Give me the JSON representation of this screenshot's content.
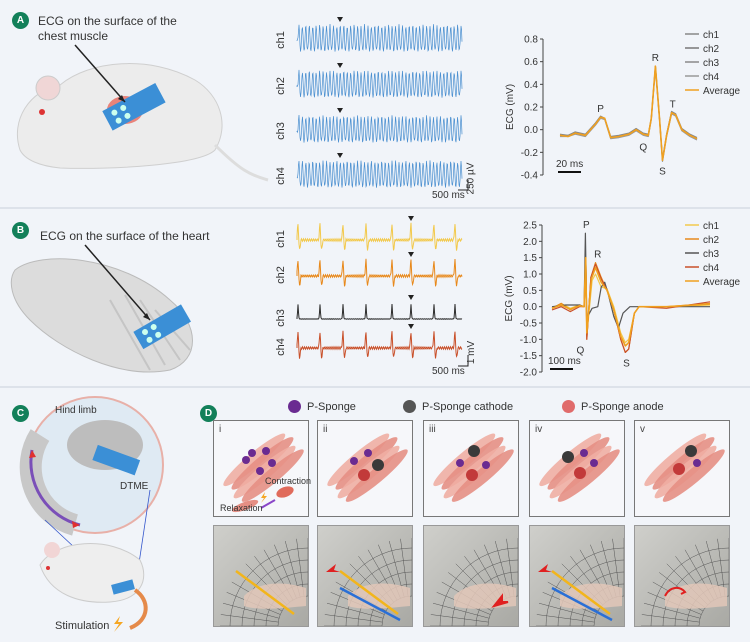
{
  "panels": {
    "a": {
      "badge": "A",
      "caption_line1": "ECG on the surface of the",
      "caption_line2": "chest muscle",
      "channels": [
        "ch1",
        "ch2",
        "ch3",
        "ch4"
      ],
      "time_scale": "500 ms",
      "amp_scale": "250 µV",
      "trace_color": "#4a8fd0"
    },
    "b": {
      "badge": "B",
      "caption": "ECG on the surface of the heart",
      "channels": [
        "ch1",
        "ch2",
        "ch3",
        "ch4"
      ],
      "time_scale": "500 ms",
      "amp_scale": "1 mV",
      "trace_colors": [
        "#f2c94c",
        "#e8891c",
        "#2b2b2b",
        "#c9502a"
      ]
    },
    "c": {
      "badge": "C",
      "hind_limb": "Hind limb",
      "dtme": "DTME",
      "stimulation": "Stimulation"
    },
    "d": {
      "badge": "D",
      "legend": [
        {
          "label": "P-Sponge",
          "color": "#6a2b91"
        },
        {
          "label": "P-Sponge cathode",
          "color": "#555555"
        },
        {
          "label": "P-Sponge anode",
          "color": "#e06b6b"
        }
      ],
      "subpanels": [
        "i",
        "ii",
        "iii",
        "iv",
        "v"
      ],
      "contraction": "Contraction",
      "relaxation": "Relaxation"
    }
  },
  "chart_data": [
    {
      "type": "line",
      "title": "",
      "ylabel": "ECG (mV)",
      "ylim": [
        -0.4,
        0.8
      ],
      "yticks": [
        "0.8",
        "0.6",
        "0.4",
        "0.2",
        "0.0",
        "-0.2",
        "-0.4"
      ],
      "xrange_ms": [
        0,
        135
      ],
      "scalebar": "20 ms",
      "legend_position": "top-right",
      "annotations": [
        {
          "label": "P",
          "t": 40,
          "v": 0.11
        },
        {
          "label": "R",
          "t": 94,
          "v": 0.56
        },
        {
          "label": "Q",
          "t": 88,
          "v": -0.06
        },
        {
          "label": "S",
          "t": 101,
          "v": -0.27
        },
        {
          "label": "T",
          "t": 111,
          "v": 0.15
        }
      ],
      "series": [
        {
          "name": "ch1",
          "color": "#888888",
          "points": [
            [
              0,
              -0.04
            ],
            [
              8,
              -0.05
            ],
            [
              15,
              -0.02
            ],
            [
              25,
              -0.04
            ],
            [
              35,
              0.06
            ],
            [
              40,
              0.12
            ],
            [
              44,
              0.1
            ],
            [
              50,
              -0.06
            ],
            [
              58,
              -0.05
            ],
            [
              68,
              -0.03
            ],
            [
              75,
              0.01
            ],
            [
              82,
              -0.03
            ],
            [
              87,
              -0.04
            ],
            [
              90,
              0.1
            ],
            [
              94,
              0.55
            ],
            [
              98,
              0.1
            ],
            [
              101,
              -0.26
            ],
            [
              105,
              -0.04
            ],
            [
              110,
              0.16
            ],
            [
              114,
              0.14
            ],
            [
              120,
              0.01
            ],
            [
              128,
              -0.04
            ],
            [
              135,
              -0.07
            ]
          ]
        },
        {
          "name": "ch2",
          "color": "#777777",
          "points": [
            [
              0,
              -0.05
            ],
            [
              8,
              -0.06
            ],
            [
              15,
              -0.03
            ],
            [
              25,
              -0.05
            ],
            [
              35,
              0.05
            ],
            [
              40,
              0.11
            ],
            [
              44,
              0.1
            ],
            [
              50,
              -0.07
            ],
            [
              58,
              -0.06
            ],
            [
              68,
              -0.04
            ],
            [
              75,
              0.0
            ],
            [
              82,
              -0.04
            ],
            [
              87,
              -0.05
            ],
            [
              90,
              0.1
            ],
            [
              94,
              0.56
            ],
            [
              98,
              0.1
            ],
            [
              101,
              -0.27
            ],
            [
              105,
              -0.05
            ],
            [
              110,
              0.15
            ],
            [
              114,
              0.13
            ],
            [
              120,
              0.0
            ],
            [
              128,
              -0.05
            ],
            [
              135,
              -0.08
            ]
          ]
        },
        {
          "name": "ch3",
          "color": "#8a8a8a",
          "points": [
            [
              0,
              -0.05
            ],
            [
              8,
              -0.05
            ],
            [
              15,
              -0.03
            ],
            [
              25,
              -0.05
            ],
            [
              35,
              0.05
            ],
            [
              40,
              0.11
            ],
            [
              44,
              0.1
            ],
            [
              50,
              -0.07
            ],
            [
              58,
              -0.06
            ],
            [
              68,
              -0.04
            ],
            [
              75,
              0.0
            ],
            [
              82,
              -0.04
            ],
            [
              87,
              -0.05
            ],
            [
              90,
              0.1
            ],
            [
              94,
              0.56
            ],
            [
              98,
              0.1
            ],
            [
              101,
              -0.27
            ],
            [
              105,
              -0.05
            ],
            [
              110,
              0.16
            ],
            [
              114,
              0.13
            ],
            [
              120,
              0.0
            ],
            [
              128,
              -0.05
            ],
            [
              135,
              -0.08
            ]
          ]
        },
        {
          "name": "ch4",
          "color": "#999999",
          "points": [
            [
              0,
              -0.06
            ],
            [
              8,
              -0.06
            ],
            [
              15,
              -0.04
            ],
            [
              25,
              -0.06
            ],
            [
              35,
              0.04
            ],
            [
              40,
              0.1
            ],
            [
              44,
              0.09
            ],
            [
              50,
              -0.08
            ],
            [
              58,
              -0.07
            ],
            [
              68,
              -0.05
            ],
            [
              75,
              -0.01
            ],
            [
              82,
              -0.05
            ],
            [
              87,
              -0.06
            ],
            [
              90,
              0.09
            ],
            [
              94,
              0.55
            ],
            [
              98,
              0.09
            ],
            [
              101,
              -0.28
            ],
            [
              105,
              -0.06
            ],
            [
              110,
              0.14
            ],
            [
              114,
              0.12
            ],
            [
              120,
              -0.01
            ],
            [
              128,
              -0.06
            ],
            [
              135,
              -0.09
            ]
          ]
        },
        {
          "name": "Average",
          "color": "#f0a020",
          "points": [
            [
              0,
              -0.05
            ],
            [
              8,
              -0.06
            ],
            [
              15,
              -0.03
            ],
            [
              25,
              -0.05
            ],
            [
              35,
              0.05
            ],
            [
              40,
              0.11
            ],
            [
              44,
              0.1
            ],
            [
              50,
              -0.07
            ],
            [
              58,
              -0.06
            ],
            [
              68,
              -0.04
            ],
            [
              75,
              0.0
            ],
            [
              82,
              -0.04
            ],
            [
              87,
              -0.05
            ],
            [
              90,
              0.1
            ],
            [
              94,
              0.56
            ],
            [
              98,
              0.1
            ],
            [
              101,
              -0.27
            ],
            [
              105,
              -0.05
            ],
            [
              110,
              0.15
            ],
            [
              114,
              0.13
            ],
            [
              120,
              0.0
            ],
            [
              128,
              -0.05
            ],
            [
              135,
              -0.08
            ]
          ]
        }
      ]
    },
    {
      "type": "line",
      "title": "",
      "ylabel": "ECG (mV)",
      "ylim": [
        -2.0,
        2.5
      ],
      "yticks": [
        "2.5",
        "2.0",
        "1.5",
        "1.0",
        "0.5",
        "0.0",
        "-0.5",
        "-1.0",
        "-1.5",
        "-2.0"
      ],
      "xrange_ms": [
        0,
        690
      ],
      "scalebar": "100 ms",
      "legend_position": "top-right",
      "annotations": [
        {
          "label": "P",
          "t": 150,
          "v": 2.25
        },
        {
          "label": "R",
          "t": 200,
          "v": 1.35
        },
        {
          "label": "Q",
          "t": 150,
          "v": -1.0
        },
        {
          "label": "S",
          "t": 325,
          "v": -1.4
        }
      ],
      "series": [
        {
          "name": "ch1",
          "color": "#f2c94c",
          "points": [
            [
              0,
              -0.05
            ],
            [
              40,
              0.1
            ],
            [
              80,
              -0.05
            ],
            [
              120,
              0.05
            ],
            [
              140,
              0.0
            ],
            [
              148,
              1.3
            ],
            [
              152,
              -0.9
            ],
            [
              175,
              0.8
            ],
            [
              190,
              1.0
            ],
            [
              215,
              0.6
            ],
            [
              240,
              0.55
            ],
            [
              270,
              0.0
            ],
            [
              300,
              -0.8
            ],
            [
              320,
              -1.1
            ],
            [
              335,
              -1.0
            ],
            [
              360,
              -0.2
            ],
            [
              380,
              0.0
            ],
            [
              500,
              0.0
            ],
            [
              690,
              0.05
            ]
          ]
        },
        {
          "name": "ch2",
          "color": "#e8891c",
          "points": [
            [
              0,
              -0.05
            ],
            [
              40,
              0.1
            ],
            [
              80,
              -0.1
            ],
            [
              120,
              0.05
            ],
            [
              140,
              0.0
            ],
            [
              148,
              1.3
            ],
            [
              152,
              -1.0
            ],
            [
              170,
              0.9
            ],
            [
              190,
              1.35
            ],
            [
              215,
              0.9
            ],
            [
              240,
              0.5
            ],
            [
              270,
              -0.1
            ],
            [
              300,
              -1.0
            ],
            [
              320,
              -1.4
            ],
            [
              335,
              -1.3
            ],
            [
              360,
              -0.2
            ],
            [
              380,
              0.0
            ],
            [
              500,
              0.0
            ],
            [
              690,
              0.1
            ]
          ]
        },
        {
          "name": "ch3",
          "color": "#555555",
          "points": [
            [
              0,
              0.0
            ],
            [
              60,
              0.05
            ],
            [
              120,
              0.05
            ],
            [
              140,
              0.0
            ],
            [
              146,
              2.25
            ],
            [
              152,
              -0.35
            ],
            [
              175,
              -0.05
            ],
            [
              200,
              0.0
            ],
            [
              215,
              0.6
            ],
            [
              230,
              0.75
            ],
            [
              245,
              0.4
            ],
            [
              270,
              -0.3
            ],
            [
              290,
              -0.65
            ],
            [
              310,
              -0.2
            ],
            [
              340,
              0.0
            ],
            [
              500,
              0.0
            ],
            [
              690,
              0.0
            ]
          ]
        },
        {
          "name": "ch4",
          "color": "#c9502a",
          "points": [
            [
              0,
              -0.1
            ],
            [
              40,
              0.0
            ],
            [
              80,
              -0.15
            ],
            [
              120,
              0.0
            ],
            [
              140,
              0.0
            ],
            [
              148,
              1.3
            ],
            [
              152,
              -1.0
            ],
            [
              170,
              0.9
            ],
            [
              190,
              1.3
            ],
            [
              215,
              0.85
            ],
            [
              240,
              0.5
            ],
            [
              270,
              -0.1
            ],
            [
              300,
              -1.0
            ],
            [
              320,
              -1.4
            ],
            [
              335,
              -1.3
            ],
            [
              360,
              -0.2
            ],
            [
              380,
              0.0
            ],
            [
              500,
              -0.05
            ],
            [
              690,
              0.15
            ]
          ]
        },
        {
          "name": "Average",
          "color": "#f0a020",
          "points": [
            [
              0,
              -0.05
            ],
            [
              40,
              0.05
            ],
            [
              80,
              -0.08
            ],
            [
              120,
              0.03
            ],
            [
              140,
              0.0
            ],
            [
              147,
              1.5
            ],
            [
              152,
              -0.8
            ],
            [
              172,
              0.85
            ],
            [
              190,
              1.2
            ],
            [
              215,
              0.75
            ],
            [
              240,
              0.5
            ],
            [
              270,
              -0.1
            ],
            [
              300,
              -0.9
            ],
            [
              320,
              -1.2
            ],
            [
              335,
              -1.1
            ],
            [
              360,
              -0.2
            ],
            [
              380,
              0.0
            ],
            [
              500,
              0.0
            ],
            [
              690,
              0.08
            ]
          ]
        }
      ]
    }
  ]
}
